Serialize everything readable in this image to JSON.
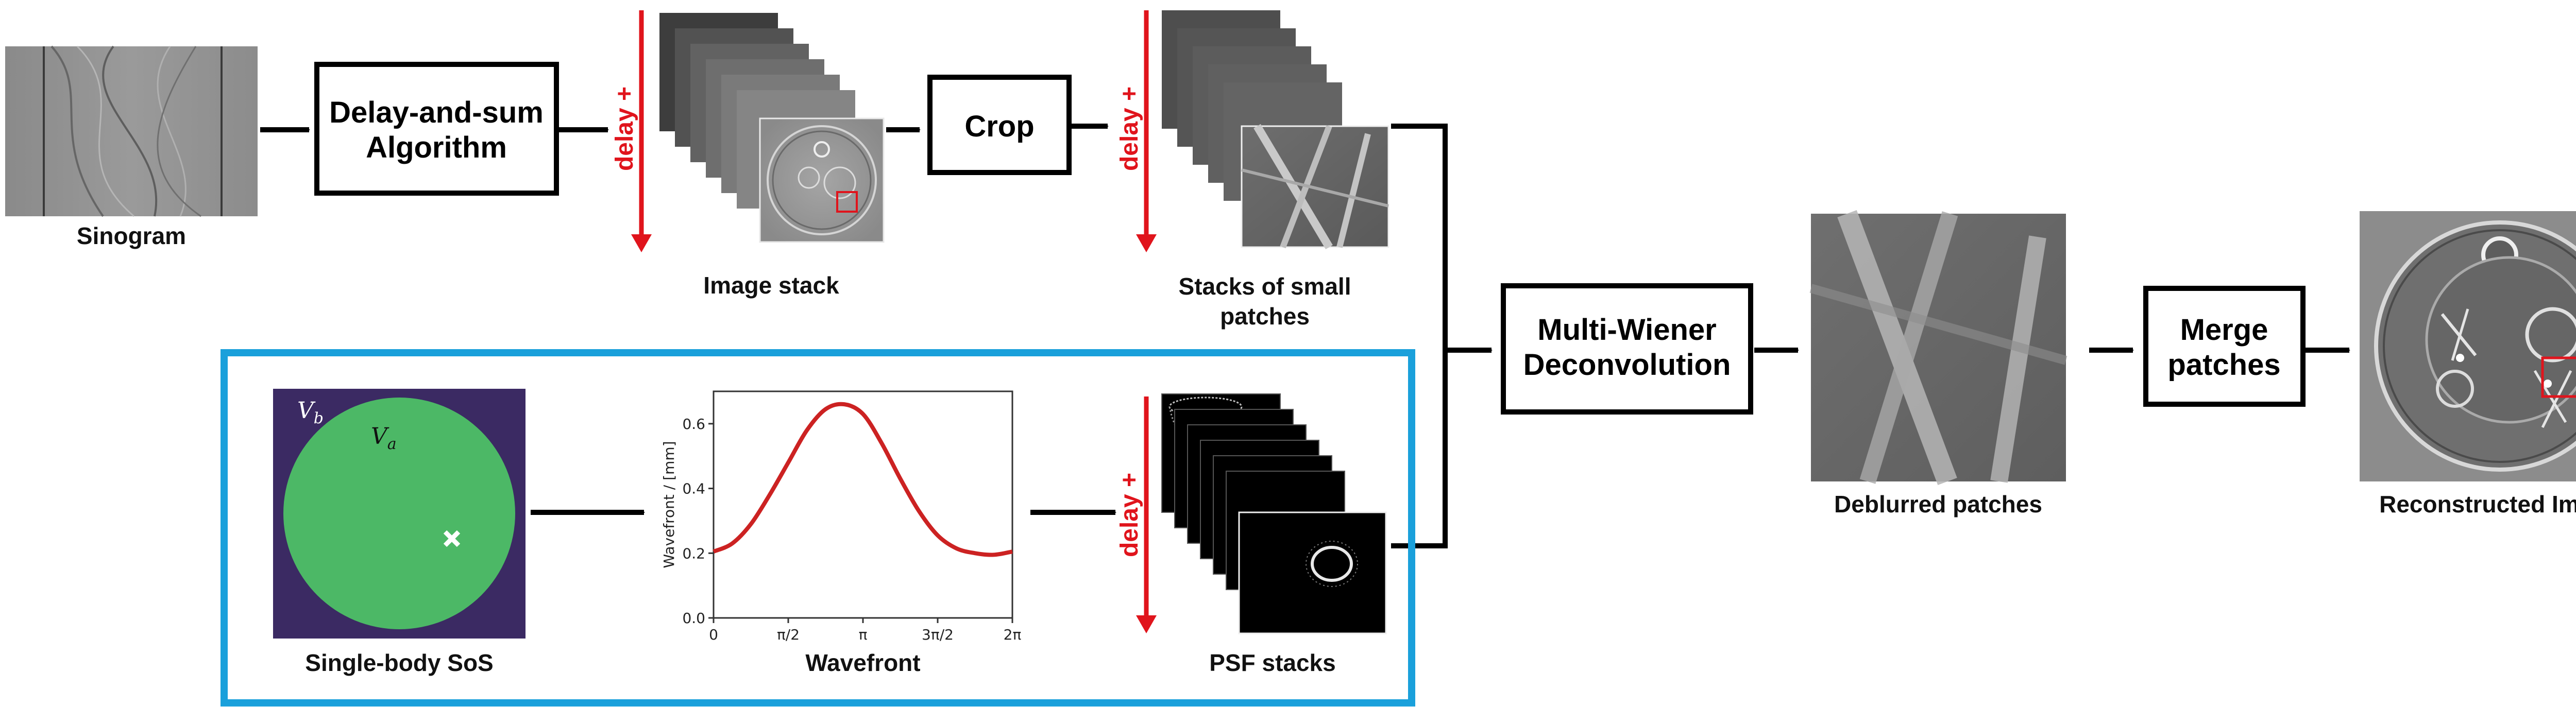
{
  "labels": {
    "sinogram": "Sinogram",
    "image_stack": "Image stack",
    "stacks_small_1": "Stacks of small",
    "stacks_small_2": "patches",
    "single_body": "Single-body SoS",
    "wavefront": "Wavefront",
    "psf_stacks": "PSF stacks",
    "deblurred": "Deblurred patches",
    "reconstructed": "Reconstructed Image",
    "delay": "delay +"
  },
  "boxes": {
    "das_1": "Delay-and-sum",
    "das_2": "Algorithm",
    "crop": "Crop",
    "wiener_1": "Multi-Wiener",
    "wiener_2": "Deconvolution",
    "merge_1": "Merge",
    "merge_2": "patches"
  },
  "sos": {
    "vb": "V",
    "vb_sub": "b",
    "va": "V",
    "va_sub": "a"
  },
  "colors": {
    "frame_blue": "#1aa0db",
    "delay_red": "#e0141c",
    "sos_background": "#3b2a63",
    "sos_body": "#4cb866",
    "curve": "#cc2222"
  },
  "chart_data": {
    "type": "line",
    "title": "",
    "xlabel": "",
    "ylabel": "Wavefront / [mm]",
    "xlim": [
      0,
      6.2832
    ],
    "ylim": [
      0.0,
      0.7
    ],
    "xticks": [
      "0",
      "π/2",
      "π",
      "3π/2",
      "2π"
    ],
    "yticks": [
      "0.0",
      "0.2",
      "0.4",
      "0.6"
    ],
    "series": [
      {
        "x": [
          0,
          0.3927,
          0.7854,
          1.1781,
          1.5708,
          1.9635,
          2.3562,
          2.7489,
          3.1416,
          3.5343,
          3.927,
          4.3197,
          4.7124,
          5.1051,
          5.4978,
          5.8905,
          6.2832
        ],
        "y": [
          0.205,
          0.23,
          0.29,
          0.38,
          0.48,
          0.58,
          0.645,
          0.66,
          0.63,
          0.54,
          0.43,
          0.33,
          0.255,
          0.215,
          0.2,
          0.195,
          0.205
        ]
      }
    ]
  }
}
